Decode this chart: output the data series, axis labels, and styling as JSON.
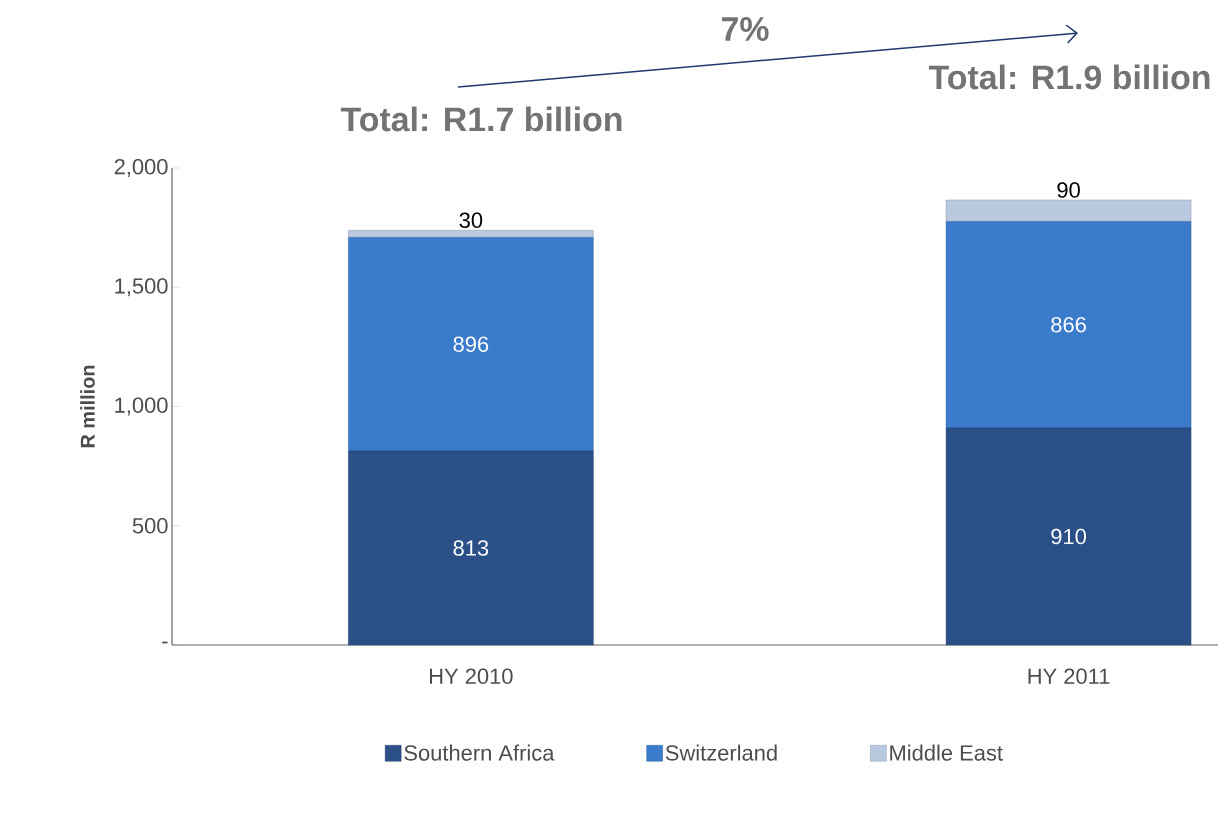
{
  "chart_data": {
    "type": "bar",
    "stacked": true,
    "categories": [
      "HY 2010",
      "HY 2011"
    ],
    "series": [
      {
        "name": "Southern Africa",
        "color": "#2b5088",
        "values": [
          813,
          910
        ]
      },
      {
        "name": "Switzerland",
        "color": "#3b7bcb",
        "values": [
          896,
          866
        ]
      },
      {
        "name": "Middle East",
        "color": "#b9c9e0",
        "values": [
          30,
          90
        ]
      }
    ],
    "ylabel": "R million",
    "ylim": [
      0,
      2000
    ],
    "yticks": [
      {
        "value": 0,
        "label": "-"
      },
      500,
      {
        "value": 1000,
        "label": "1,000"
      },
      {
        "value": 1500,
        "label": "1,500"
      },
      {
        "value": 2000,
        "label": "2,000"
      }
    ],
    "data_labels": true,
    "legend": "bottom",
    "grid": false,
    "annotations": [
      "7%",
      "Total: R1.7 billion",
      "Total: R1.9 billion"
    ]
  }
}
